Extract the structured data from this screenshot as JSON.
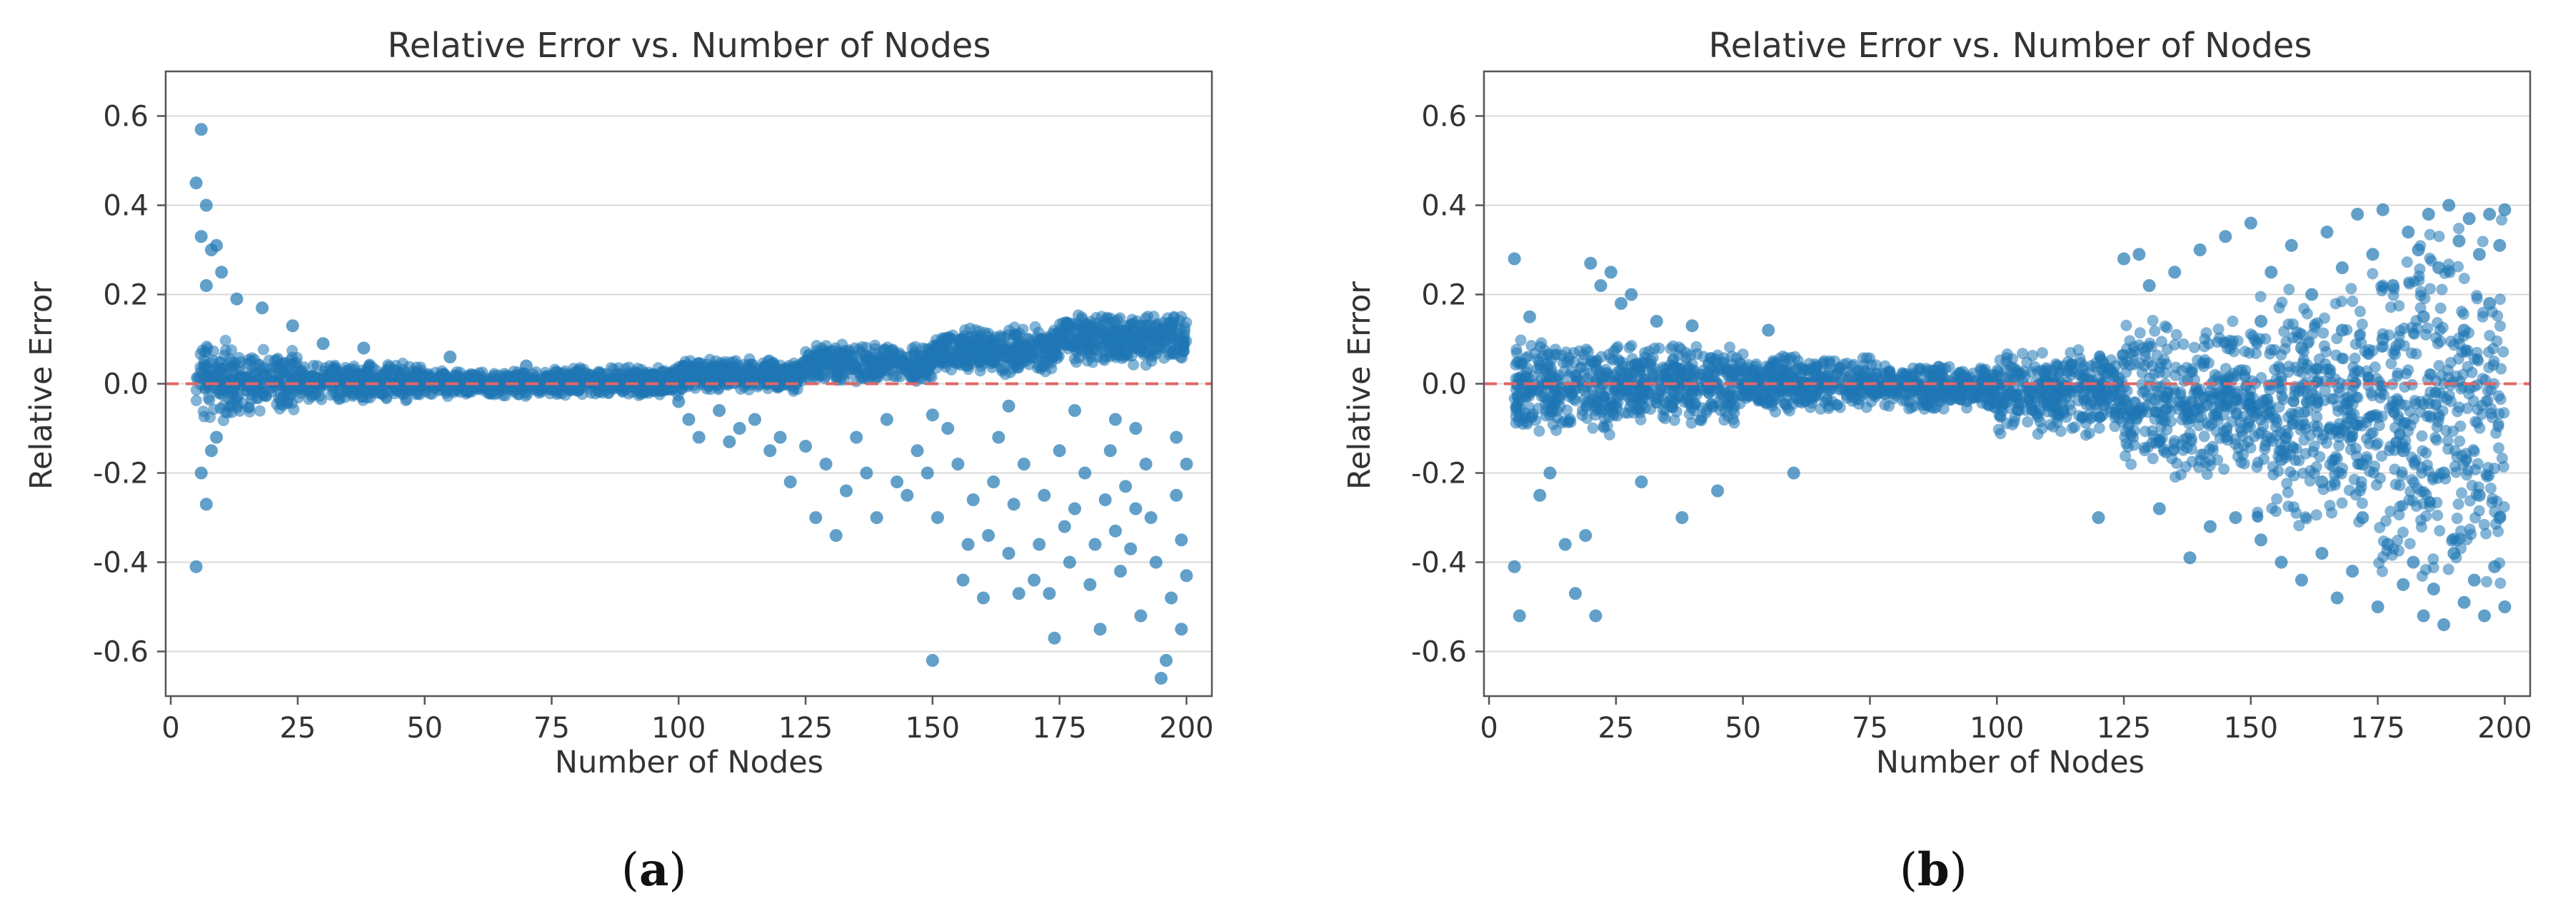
{
  "chart_data": [
    {
      "type": "scatter",
      "panel_label": "a",
      "title": "Relative Error vs. Number of Nodes",
      "xlabel": "Number of Nodes",
      "ylabel": "Relative Error",
      "xlim": [
        -1,
        205
      ],
      "ylim": [
        -0.7,
        0.7
      ],
      "xticks": [
        0,
        25,
        50,
        75,
        100,
        125,
        150,
        175,
        200
      ],
      "yticks": [
        -0.6,
        -0.4,
        -0.2,
        0.0,
        0.2,
        0.4,
        0.6
      ],
      "ytick_labels": [
        "-0.6",
        "-0.4",
        "-0.2",
        "0.0",
        "0.2",
        "0.4",
        "0.6"
      ],
      "grid": "horizontal",
      "reference_line": {
        "y": 0.0,
        "color": "#e06666",
        "style": "dashed"
      },
      "point_color": "#1f77b4",
      "points": [
        [
          5,
          0.45
        ],
        [
          6,
          0.57
        ],
        [
          7,
          0.4
        ],
        [
          8,
          0.3
        ],
        [
          9,
          0.31
        ],
        [
          10,
          0.25
        ],
        [
          6,
          0.33
        ],
        [
          7,
          0.22
        ],
        [
          5,
          -0.41
        ],
        [
          6,
          -0.2
        ],
        [
          7,
          -0.27
        ],
        [
          8,
          -0.15
        ],
        [
          9,
          -0.12
        ],
        [
          13,
          0.19
        ],
        [
          18,
          0.17
        ],
        [
          24,
          0.13
        ],
        [
          30,
          0.09
        ],
        [
          38,
          0.08
        ],
        [
          55,
          0.06
        ],
        [
          70,
          0.04
        ],
        [
          100,
          -0.04
        ],
        [
          102,
          -0.08
        ],
        [
          104,
          -0.12
        ],
        [
          108,
          -0.06
        ],
        [
          110,
          -0.13
        ],
        [
          112,
          -0.1
        ],
        [
          115,
          -0.08
        ],
        [
          118,
          -0.15
        ],
        [
          120,
          -0.12
        ],
        [
          122,
          -0.22
        ],
        [
          125,
          -0.14
        ],
        [
          127,
          -0.3
        ],
        [
          129,
          -0.18
        ],
        [
          131,
          -0.34
        ],
        [
          133,
          -0.24
        ],
        [
          135,
          -0.12
        ],
        [
          137,
          -0.2
        ],
        [
          139,
          -0.3
        ],
        [
          141,
          -0.08
        ],
        [
          143,
          -0.22
        ],
        [
          145,
          -0.25
        ],
        [
          147,
          -0.15
        ],
        [
          149,
          -0.2
        ],
        [
          150,
          -0.62
        ],
        [
          151,
          -0.3
        ],
        [
          153,
          -0.1
        ],
        [
          155,
          -0.18
        ],
        [
          156,
          -0.44
        ],
        [
          157,
          -0.36
        ],
        [
          158,
          -0.26
        ],
        [
          160,
          -0.48
        ],
        [
          161,
          -0.34
        ],
        [
          162,
          -0.22
        ],
        [
          163,
          -0.12
        ],
        [
          165,
          -0.38
        ],
        [
          166,
          -0.27
        ],
        [
          167,
          -0.47
        ],
        [
          168,
          -0.18
        ],
        [
          170,
          -0.44
        ],
        [
          171,
          -0.36
        ],
        [
          172,
          -0.25
        ],
        [
          173,
          -0.47
        ],
        [
          174,
          -0.57
        ],
        [
          175,
          -0.15
        ],
        [
          176,
          -0.32
        ],
        [
          177,
          -0.4
        ],
        [
          178,
          -0.28
        ],
        [
          180,
          -0.2
        ],
        [
          181,
          -0.45
        ],
        [
          182,
          -0.36
        ],
        [
          183,
          -0.55
        ],
        [
          184,
          -0.26
        ],
        [
          185,
          -0.15
        ],
        [
          186,
          -0.33
        ],
        [
          187,
          -0.42
        ],
        [
          188,
          -0.23
        ],
        [
          189,
          -0.37
        ],
        [
          190,
          -0.28
        ],
        [
          191,
          -0.52
        ],
        [
          192,
          -0.18
        ],
        [
          193,
          -0.3
        ],
        [
          194,
          -0.4
        ],
        [
          195,
          -0.66
        ],
        [
          196,
          -0.62
        ],
        [
          197,
          -0.48
        ],
        [
          198,
          -0.25
        ],
        [
          199,
          -0.55
        ],
        [
          200,
          -0.43
        ],
        [
          199,
          -0.35
        ],
        [
          200,
          -0.18
        ],
        [
          198,
          -0.12
        ],
        [
          190,
          -0.1
        ],
        [
          186,
          -0.08
        ],
        [
          178,
          -0.06
        ],
        [
          165,
          -0.05
        ],
        [
          150,
          -0.07
        ]
      ],
      "bands": [
        {
          "x": [
            5,
            12
          ],
          "lo": -0.1,
          "hi": 0.12
        },
        {
          "x": [
            12,
            25
          ],
          "lo": -0.07,
          "hi": 0.08
        },
        {
          "x": [
            25,
            50
          ],
          "lo": -0.04,
          "hi": 0.05
        },
        {
          "x": [
            50,
            75
          ],
          "lo": -0.03,
          "hi": 0.03
        },
        {
          "x": [
            75,
            100
          ],
          "lo": -0.03,
          "hi": 0.04
        },
        {
          "x": [
            100,
            125
          ],
          "lo": -0.02,
          "hi": 0.06
        },
        {
          "x": [
            125,
            150
          ],
          "lo": 0.0,
          "hi": 0.09
        },
        {
          "x": [
            150,
            175
          ],
          "lo": 0.02,
          "hi": 0.13
        },
        {
          "x": [
            175,
            200
          ],
          "lo": 0.04,
          "hi": 0.16
        }
      ]
    },
    {
      "type": "scatter",
      "panel_label": "b",
      "title": "Relative Error vs. Number of Nodes",
      "xlabel": "Number of Nodes",
      "ylabel": "Relative Error",
      "xlim": [
        -1,
        205
      ],
      "ylim": [
        -0.7,
        0.7
      ],
      "xticks": [
        0,
        25,
        50,
        75,
        100,
        125,
        150,
        175,
        200
      ],
      "yticks": [
        -0.6,
        -0.4,
        -0.2,
        0.0,
        0.2,
        0.4,
        0.6
      ],
      "ytick_labels": [
        "-0.6",
        "-0.4",
        "-0.2",
        "0.0",
        "0.2",
        "0.4",
        "0.6"
      ],
      "grid": "horizontal",
      "reference_line": {
        "y": 0.0,
        "color": "#e06666",
        "style": "dashed"
      },
      "point_color": "#1f77b4",
      "points": [
        [
          5,
          0.28
        ],
        [
          5,
          -0.41
        ],
        [
          6,
          -0.52
        ],
        [
          8,
          0.15
        ],
        [
          10,
          -0.25
        ],
        [
          12,
          -0.2
        ],
        [
          15,
          -0.36
        ],
        [
          17,
          -0.47
        ],
        [
          19,
          -0.34
        ],
        [
          20,
          0.27
        ],
        [
          21,
          -0.52
        ],
        [
          22,
          0.22
        ],
        [
          24,
          0.25
        ],
        [
          26,
          0.18
        ],
        [
          28,
          0.2
        ],
        [
          30,
          -0.22
        ],
        [
          33,
          0.14
        ],
        [
          38,
          -0.3
        ],
        [
          40,
          0.13
        ],
        [
          45,
          -0.24
        ],
        [
          55,
          0.12
        ],
        [
          60,
          -0.2
        ],
        [
          120,
          -0.3
        ],
        [
          125,
          0.28
        ],
        [
          128,
          0.29
        ],
        [
          130,
          0.22
        ],
        [
          132,
          -0.28
        ],
        [
          135,
          0.25
        ],
        [
          138,
          -0.39
        ],
        [
          140,
          0.3
        ],
        [
          142,
          -0.32
        ],
        [
          145,
          0.33
        ],
        [
          147,
          -0.3
        ],
        [
          150,
          0.36
        ],
        [
          152,
          -0.35
        ],
        [
          154,
          0.25
        ],
        [
          156,
          -0.4
        ],
        [
          158,
          0.31
        ],
        [
          160,
          -0.44
        ],
        [
          162,
          0.2
        ],
        [
          164,
          -0.38
        ],
        [
          165,
          0.34
        ],
        [
          167,
          -0.48
        ],
        [
          168,
          0.26
        ],
        [
          170,
          -0.42
        ],
        [
          171,
          0.38
        ],
        [
          172,
          -0.3
        ],
        [
          174,
          0.29
        ],
        [
          175,
          -0.5
        ],
        [
          176,
          0.39
        ],
        [
          177,
          -0.36
        ],
        [
          178,
          0.22
        ],
        [
          180,
          -0.45
        ],
        [
          181,
          0.34
        ],
        [
          182,
          -0.4
        ],
        [
          183,
          0.3
        ],
        [
          184,
          -0.52
        ],
        [
          185,
          0.38
        ],
        [
          186,
          -0.46
        ],
        [
          187,
          0.26
        ],
        [
          188,
          -0.54
        ],
        [
          189,
          0.4
        ],
        [
          190,
          -0.38
        ],
        [
          191,
          0.32
        ],
        [
          192,
          -0.49
        ],
        [
          193,
          0.37
        ],
        [
          194,
          -0.44
        ],
        [
          195,
          0.29
        ],
        [
          196,
          -0.52
        ],
        [
          197,
          0.38
        ],
        [
          198,
          -0.41
        ],
        [
          199,
          0.31
        ],
        [
          200,
          -0.5
        ],
        [
          200,
          0.39
        ],
        [
          199,
          -0.3
        ],
        [
          197,
          0.18
        ],
        [
          195,
          -0.25
        ],
        [
          192,
          0.12
        ],
        [
          188,
          -0.2
        ],
        [
          184,
          0.15
        ],
        [
          180,
          -0.15
        ],
        [
          176,
          0.1
        ],
        [
          172,
          -0.18
        ],
        [
          168,
          0.12
        ],
        [
          164,
          -0.22
        ],
        [
          160,
          0.08
        ],
        [
          156,
          -0.17
        ],
        [
          152,
          0.14
        ]
      ],
      "bands": [
        {
          "x": [
            5,
            25
          ],
          "lo": -0.12,
          "hi": 0.1
        },
        {
          "x": [
            25,
            50
          ],
          "lo": -0.1,
          "hi": 0.1
        },
        {
          "x": [
            50,
            75
          ],
          "lo": -0.07,
          "hi": 0.07
        },
        {
          "x": [
            75,
            100
          ],
          "lo": -0.06,
          "hi": 0.05
        },
        {
          "x": [
            100,
            125
          ],
          "lo": -0.12,
          "hi": 0.08
        },
        {
          "x": [
            125,
            150
          ],
          "lo": -0.22,
          "hi": 0.15
        },
        {
          "x": [
            150,
            175
          ],
          "lo": -0.35,
          "hi": 0.25
        },
        {
          "x": [
            175,
            200
          ],
          "lo": -0.5,
          "hi": 0.38
        }
      ]
    }
  ]
}
